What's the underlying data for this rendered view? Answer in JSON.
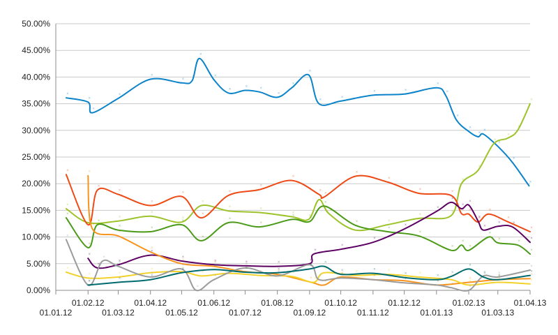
{
  "chart_data": {
    "type": "line",
    "title": "",
    "xlabel": "",
    "ylabel": "",
    "ylim": [
      0,
      50
    ],
    "y_ticks": [
      "0.00%",
      "5.00%",
      "10.00%",
      "15.00%",
      "20.00%",
      "25.00%",
      "30.00%",
      "35.00%",
      "40.00%",
      "45.00%",
      "50.00%"
    ],
    "y_tick_values": [
      0,
      5,
      10,
      15,
      20,
      25,
      30,
      35,
      40,
      45,
      50
    ],
    "x_ticks_upper": [
      "01.02.12",
      "01.04.12",
      "01.06.12",
      "01.08.12",
      "01.10.12",
      "01.12.12",
      "01.02.13",
      "01.04.13"
    ],
    "x_ticks_lower": [
      "01.01.12",
      "01.03.12",
      "01.05.12",
      "01.07.12",
      "01.09.12",
      "01.11.12",
      "01.01.13",
      "01.03.13"
    ],
    "x_range": [
      "2012-01-01",
      "2013-04-01"
    ],
    "x_tick_dates_upper": [
      "2012-02-01",
      "2012-04-01",
      "2012-06-01",
      "2012-08-01",
      "2012-10-01",
      "2012-12-01",
      "2013-02-01",
      "2013-04-01"
    ],
    "x_tick_dates_lower": [
      "2012-01-01",
      "2012-03-01",
      "2012-05-01",
      "2012-07-01",
      "2012-09-01",
      "2012-11-01",
      "2013-01-01",
      "2013-03-01"
    ],
    "grid": true,
    "legend": "none",
    "series": [
      {
        "color": "#0a83c9",
        "points": [
          [
            "2012-01-11",
            36.1
          ],
          [
            "2012-02-01",
            35.3
          ],
          [
            "2012-02-05",
            33.3
          ],
          [
            "2012-03-01",
            36.0
          ],
          [
            "2012-04-01",
            39.6
          ],
          [
            "2012-05-01",
            38.9
          ],
          [
            "2012-05-11",
            39.3
          ],
          [
            "2012-05-18",
            43.5
          ],
          [
            "2012-06-01",
            39.5
          ],
          [
            "2012-06-15",
            37.0
          ],
          [
            "2012-07-01",
            37.5
          ],
          [
            "2012-07-15",
            37.2
          ],
          [
            "2012-08-01",
            36.2
          ],
          [
            "2012-08-15",
            38.0
          ],
          [
            "2012-08-31",
            40.4
          ],
          [
            "2012-09-10",
            35.0
          ],
          [
            "2012-10-01",
            35.5
          ],
          [
            "2012-11-01",
            36.6
          ],
          [
            "2012-12-01",
            36.8
          ],
          [
            "2013-01-01",
            38.0
          ],
          [
            "2013-01-10",
            36.5
          ],
          [
            "2013-01-20",
            32.0
          ],
          [
            "2013-02-01",
            29.8
          ],
          [
            "2013-02-10",
            28.8
          ],
          [
            "2013-02-15",
            29.3
          ],
          [
            "2013-03-01",
            27.0
          ],
          [
            "2013-03-15",
            24.0
          ],
          [
            "2013-03-31",
            19.6
          ]
        ]
      },
      {
        "color": "#9dc32a",
        "points": [
          [
            "2012-01-11",
            15.3
          ],
          [
            "2012-02-01",
            12.7
          ],
          [
            "2012-03-01",
            13.0
          ],
          [
            "2012-04-01",
            13.9
          ],
          [
            "2012-05-01",
            12.8
          ],
          [
            "2012-05-20",
            15.9
          ],
          [
            "2012-06-15",
            14.9
          ],
          [
            "2012-07-15",
            14.6
          ],
          [
            "2012-08-15",
            13.8
          ],
          [
            "2012-08-31",
            13.3
          ],
          [
            "2012-09-10",
            17.0
          ],
          [
            "2012-09-20",
            14.3
          ],
          [
            "2012-10-15",
            11.3
          ],
          [
            "2012-11-15",
            12.3
          ],
          [
            "2012-12-15",
            13.5
          ],
          [
            "2013-01-15",
            14.0
          ],
          [
            "2013-01-25",
            20.0
          ],
          [
            "2013-02-10",
            22.5
          ],
          [
            "2013-02-25",
            27.5
          ],
          [
            "2013-03-10",
            28.5
          ],
          [
            "2013-03-20",
            30.0
          ],
          [
            "2013-04-01",
            35.0
          ]
        ]
      },
      {
        "color": "#ee4a16",
        "points": [
          [
            "2012-01-11",
            21.7
          ],
          [
            "2012-02-01",
            12.3
          ],
          [
            "2012-02-10",
            18.8
          ],
          [
            "2012-03-01",
            18.0
          ],
          [
            "2012-04-01",
            15.9
          ],
          [
            "2012-05-01",
            17.6
          ],
          [
            "2012-05-20",
            13.6
          ],
          [
            "2012-06-15",
            17.8
          ],
          [
            "2012-07-15",
            18.9
          ],
          [
            "2012-08-15",
            20.6
          ],
          [
            "2012-09-10",
            18.0
          ],
          [
            "2012-09-15",
            17.5
          ],
          [
            "2012-10-15",
            21.4
          ],
          [
            "2012-11-15",
            20.3
          ],
          [
            "2012-12-15",
            18.2
          ],
          [
            "2013-01-15",
            17.8
          ],
          [
            "2013-01-25",
            14.4
          ],
          [
            "2013-02-01",
            14.3
          ],
          [
            "2013-02-10",
            12.8
          ],
          [
            "2013-02-20",
            14.3
          ],
          [
            "2013-03-10",
            12.9
          ],
          [
            "2013-04-01",
            11.0
          ]
        ]
      },
      {
        "color": "#4a9a18",
        "points": [
          [
            "2012-01-11",
            13.6
          ],
          [
            "2012-02-01",
            8.0
          ],
          [
            "2012-02-10",
            12.3
          ],
          [
            "2012-03-01",
            11.3
          ],
          [
            "2012-04-01",
            11.0
          ],
          [
            "2012-05-01",
            12.3
          ],
          [
            "2012-05-20",
            9.3
          ],
          [
            "2012-06-15",
            12.7
          ],
          [
            "2012-07-15",
            11.9
          ],
          [
            "2012-08-15",
            13.3
          ],
          [
            "2012-09-01",
            12.9
          ],
          [
            "2012-09-15",
            15.8
          ],
          [
            "2012-10-15",
            12.2
          ],
          [
            "2012-11-15",
            11.0
          ],
          [
            "2012-12-15",
            10.2
          ],
          [
            "2013-01-15",
            7.5
          ],
          [
            "2013-01-25",
            8.5
          ],
          [
            "2013-02-01",
            7.5
          ],
          [
            "2013-02-20",
            10.0
          ],
          [
            "2013-03-01",
            8.9
          ],
          [
            "2013-03-20",
            8.5
          ],
          [
            "2013-04-01",
            6.8
          ]
        ]
      },
      {
        "color": "#5c0062",
        "points": [
          [
            "2012-02-01",
            6.0
          ],
          [
            "2012-02-10",
            4.2
          ],
          [
            "2012-03-01",
            4.8
          ],
          [
            "2012-04-01",
            6.6
          ],
          [
            "2012-05-01",
            5.5
          ],
          [
            "2012-06-01",
            4.8
          ],
          [
            "2012-07-01",
            4.6
          ],
          [
            "2012-08-01",
            4.5
          ],
          [
            "2012-09-01",
            5.0
          ],
          [
            "2012-09-05",
            6.8
          ],
          [
            "2012-10-01",
            7.7
          ],
          [
            "2012-11-01",
            9.0
          ],
          [
            "2012-12-01",
            11.5
          ],
          [
            "2013-01-01",
            14.8
          ],
          [
            "2013-01-15",
            16.5
          ],
          [
            "2013-01-25",
            15.3
          ],
          [
            "2013-02-01",
            16.0
          ],
          [
            "2013-02-10",
            13.0
          ],
          [
            "2013-02-15",
            11.3
          ],
          [
            "2013-03-01",
            12.0
          ],
          [
            "2013-03-15",
            11.9
          ],
          [
            "2013-04-01",
            9.0
          ]
        ]
      },
      {
        "color": "#f7941d",
        "points": [
          [
            "2012-02-01",
            21.5
          ],
          [
            "2012-02-05",
            11.6
          ],
          [
            "2012-03-01",
            10.2
          ],
          [
            "2012-04-01",
            7.2
          ],
          [
            "2012-05-01",
            5.0
          ],
          [
            "2012-06-01",
            4.5
          ],
          [
            "2012-07-01",
            3.5
          ],
          [
            "2012-08-01",
            3.0
          ],
          [
            "2012-09-01",
            1.6
          ],
          [
            "2012-09-15",
            1.0
          ],
          [
            "2012-10-01",
            2.5
          ],
          [
            "2012-11-01",
            2.0
          ],
          [
            "2012-12-01",
            1.8
          ],
          [
            "2013-01-01",
            1.0
          ],
          [
            "2013-02-01",
            1.5
          ],
          [
            "2013-03-01",
            2.0
          ],
          [
            "2013-04-01",
            2.2
          ]
        ]
      },
      {
        "color": "#f2d22a",
        "points": [
          [
            "2012-01-11",
            3.4
          ],
          [
            "2012-02-01",
            2.3
          ],
          [
            "2012-03-01",
            2.5
          ],
          [
            "2012-04-01",
            3.3
          ],
          [
            "2012-05-01",
            3.5
          ],
          [
            "2012-05-20",
            2.7
          ],
          [
            "2012-06-15",
            3.2
          ],
          [
            "2012-07-15",
            2.8
          ],
          [
            "2012-08-15",
            2.6
          ],
          [
            "2012-09-05",
            1.5
          ],
          [
            "2012-09-15",
            3.3
          ],
          [
            "2012-10-15",
            2.8
          ],
          [
            "2012-11-15",
            3.0
          ],
          [
            "2012-12-15",
            2.5
          ],
          [
            "2013-01-15",
            2.0
          ],
          [
            "2013-02-01",
            1.0
          ],
          [
            "2013-03-01",
            1.5
          ],
          [
            "2013-04-01",
            1.2
          ]
        ]
      },
      {
        "color": "#9b9b9b",
        "points": [
          [
            "2012-01-11",
            9.5
          ],
          [
            "2012-02-01",
            1.0
          ],
          [
            "2012-02-15",
            5.5
          ],
          [
            "2012-03-01",
            4.5
          ],
          [
            "2012-04-01",
            2.5
          ],
          [
            "2012-05-01",
            4.0
          ],
          [
            "2012-05-15",
            0.0
          ],
          [
            "2012-06-01",
            2.0
          ],
          [
            "2012-07-01",
            4.2
          ],
          [
            "2012-08-01",
            2.7
          ],
          [
            "2012-09-01",
            4.8
          ],
          [
            "2012-09-10",
            2.0
          ],
          [
            "2012-10-01",
            2.3
          ],
          [
            "2012-11-01",
            2.0
          ],
          [
            "2012-12-01",
            1.4
          ],
          [
            "2013-01-01",
            1.0
          ],
          [
            "2013-01-15",
            0.5
          ],
          [
            "2013-02-01",
            0.0
          ],
          [
            "2013-02-15",
            2.7
          ],
          [
            "2013-03-01",
            2.5
          ],
          [
            "2013-04-01",
            3.8
          ]
        ]
      },
      {
        "color": "#006b6e",
        "points": [
          [
            "2012-02-01",
            1.0
          ],
          [
            "2012-03-01",
            1.5
          ],
          [
            "2012-04-01",
            2.0
          ],
          [
            "2012-05-01",
            3.3
          ],
          [
            "2012-06-01",
            3.9
          ],
          [
            "2012-07-01",
            3.4
          ],
          [
            "2012-08-01",
            3.3
          ],
          [
            "2012-09-01",
            4.0
          ],
          [
            "2012-09-15",
            4.5
          ],
          [
            "2012-10-01",
            3.0
          ],
          [
            "2012-11-01",
            3.2
          ],
          [
            "2012-12-01",
            2.4
          ],
          [
            "2013-01-01",
            2.0
          ],
          [
            "2013-01-15",
            2.6
          ],
          [
            "2013-02-01",
            4.0
          ],
          [
            "2013-02-15",
            2.5
          ],
          [
            "2013-03-01",
            2.0
          ],
          [
            "2013-04-01",
            2.8
          ]
        ]
      }
    ]
  }
}
